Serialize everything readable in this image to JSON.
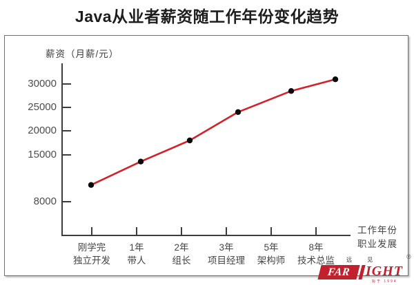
{
  "chart_data": {
    "type": "line",
    "title": "Java从业者薪资随工作年份变化趋势",
    "ylabel": "薪资（月薪/元）",
    "xlabel_line1": "工作年份",
    "xlabel_line2": "职业发展",
    "y_ticks": [
      30000,
      25000,
      20000,
      15000,
      8000
    ],
    "categories": [
      "刚学完",
      "1年",
      "2年",
      "3年",
      "5年",
      "8年"
    ],
    "category_roles": [
      "独立开发",
      "带人",
      "组长",
      "项目经理",
      "架构师",
      "技术总监"
    ],
    "values": [
      10500,
      14000,
      18000,
      24000,
      28500,
      31000
    ],
    "ylim": [
      0,
      33000
    ],
    "grid": false,
    "legend": "none",
    "line_color": "#d42127",
    "point_color": "#0a0a0a",
    "axis_color": "#3c3c3c"
  },
  "logo": {
    "mini_text": "远 见",
    "registered_mark": "®",
    "box_text": "FAR",
    "right_text": "IGHT",
    "tagline": "始于 1994"
  }
}
